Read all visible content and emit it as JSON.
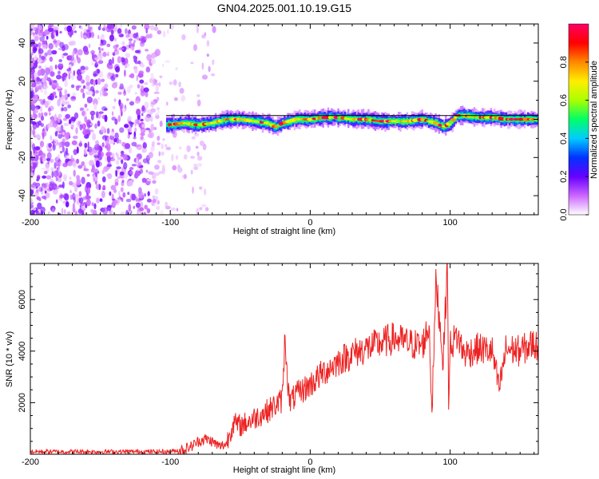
{
  "chart_data": [
    {
      "type": "heatmap",
      "title": "GN04.2025.001.10.19.G15",
      "xlabel": "Height of straight line (km)",
      "ylabel": "Frequency (Hz)",
      "xlim": [
        -200,
        163
      ],
      "ylim": [
        -50,
        50
      ],
      "x_ticks": [
        "-200",
        "-100",
        "0",
        "100"
      ],
      "y_ticks": [
        "-40",
        "-20",
        "0",
        "20",
        "40"
      ],
      "colorbar": {
        "label": "Normalized spectral amplitude",
        "range": [
          0,
          1
        ],
        "ticks": [
          "0.0",
          "0.2",
          "0.4",
          "0.6",
          "0.8"
        ],
        "colors": [
          "#ffffff",
          "#cc66ff",
          "#6600ff",
          "#0033ff",
          "#00ccff",
          "#00ff66",
          "#aaff00",
          "#ffee00",
          "#ff8800",
          "#ff0000",
          "#ff0066"
        ]
      },
      "noise_region_x": [
        -200,
        -68
      ],
      "signal_ridge": {
        "x": [
          -103,
          -90,
          -80,
          -70,
          -60,
          -50,
          -40,
          -30,
          -25,
          -20,
          -10,
          0,
          10,
          20,
          30,
          40,
          50,
          60,
          70,
          80,
          85,
          90,
          95,
          100,
          105,
          110,
          120,
          130,
          140,
          150,
          163
        ],
        "freq": [
          -3,
          -2,
          -3,
          -2,
          0,
          0,
          -1,
          -2,
          -4,
          -2,
          0,
          0,
          1,
          1,
          0,
          0,
          -1,
          -1,
          -1,
          0,
          -1,
          -2,
          -4,
          -2,
          2,
          2,
          1,
          1,
          0,
          0,
          0
        ]
      },
      "hline_y": 0
    },
    {
      "type": "line",
      "title": "",
      "xlabel": "Height of straight line (km)",
      "ylabel": "SNR (10 * v/v)",
      "xlim": [
        -200,
        163
      ],
      "ylim": [
        0,
        7400
      ],
      "x_ticks": [
        "-200",
        "-100",
        "0",
        "100"
      ],
      "y_ticks": [
        "2000",
        "4000",
        "6000"
      ],
      "color": "#ee2222",
      "series": [
        {
          "x": [
            -200,
            -180,
            -160,
            -140,
            -120,
            -100,
            -90,
            -85,
            -80,
            -75,
            -70,
            -65,
            -60,
            -57,
            -55,
            -50,
            -40,
            -30,
            -20,
            -18,
            -15,
            -10,
            0,
            10,
            20,
            30,
            40,
            50,
            60,
            70,
            80,
            85,
            87,
            90,
            95,
            98,
            99,
            100,
            105,
            110,
            120,
            130,
            135,
            140,
            150,
            160,
            163
          ],
          "y": [
            100,
            100,
            100,
            100,
            100,
            100,
            200,
            300,
            500,
            600,
            500,
            300,
            400,
            900,
            1200,
            1100,
            1400,
            1700,
            2100,
            4600,
            2000,
            2300,
            2700,
            3200,
            3600,
            3900,
            4100,
            4300,
            4500,
            4300,
            4200,
            5000,
            1700,
            6800,
            3600,
            7400,
            1600,
            4200,
            4600,
            3900,
            4100,
            4000,
            2500,
            4100,
            4000,
            4300,
            4100
          ]
        }
      ]
    }
  ]
}
